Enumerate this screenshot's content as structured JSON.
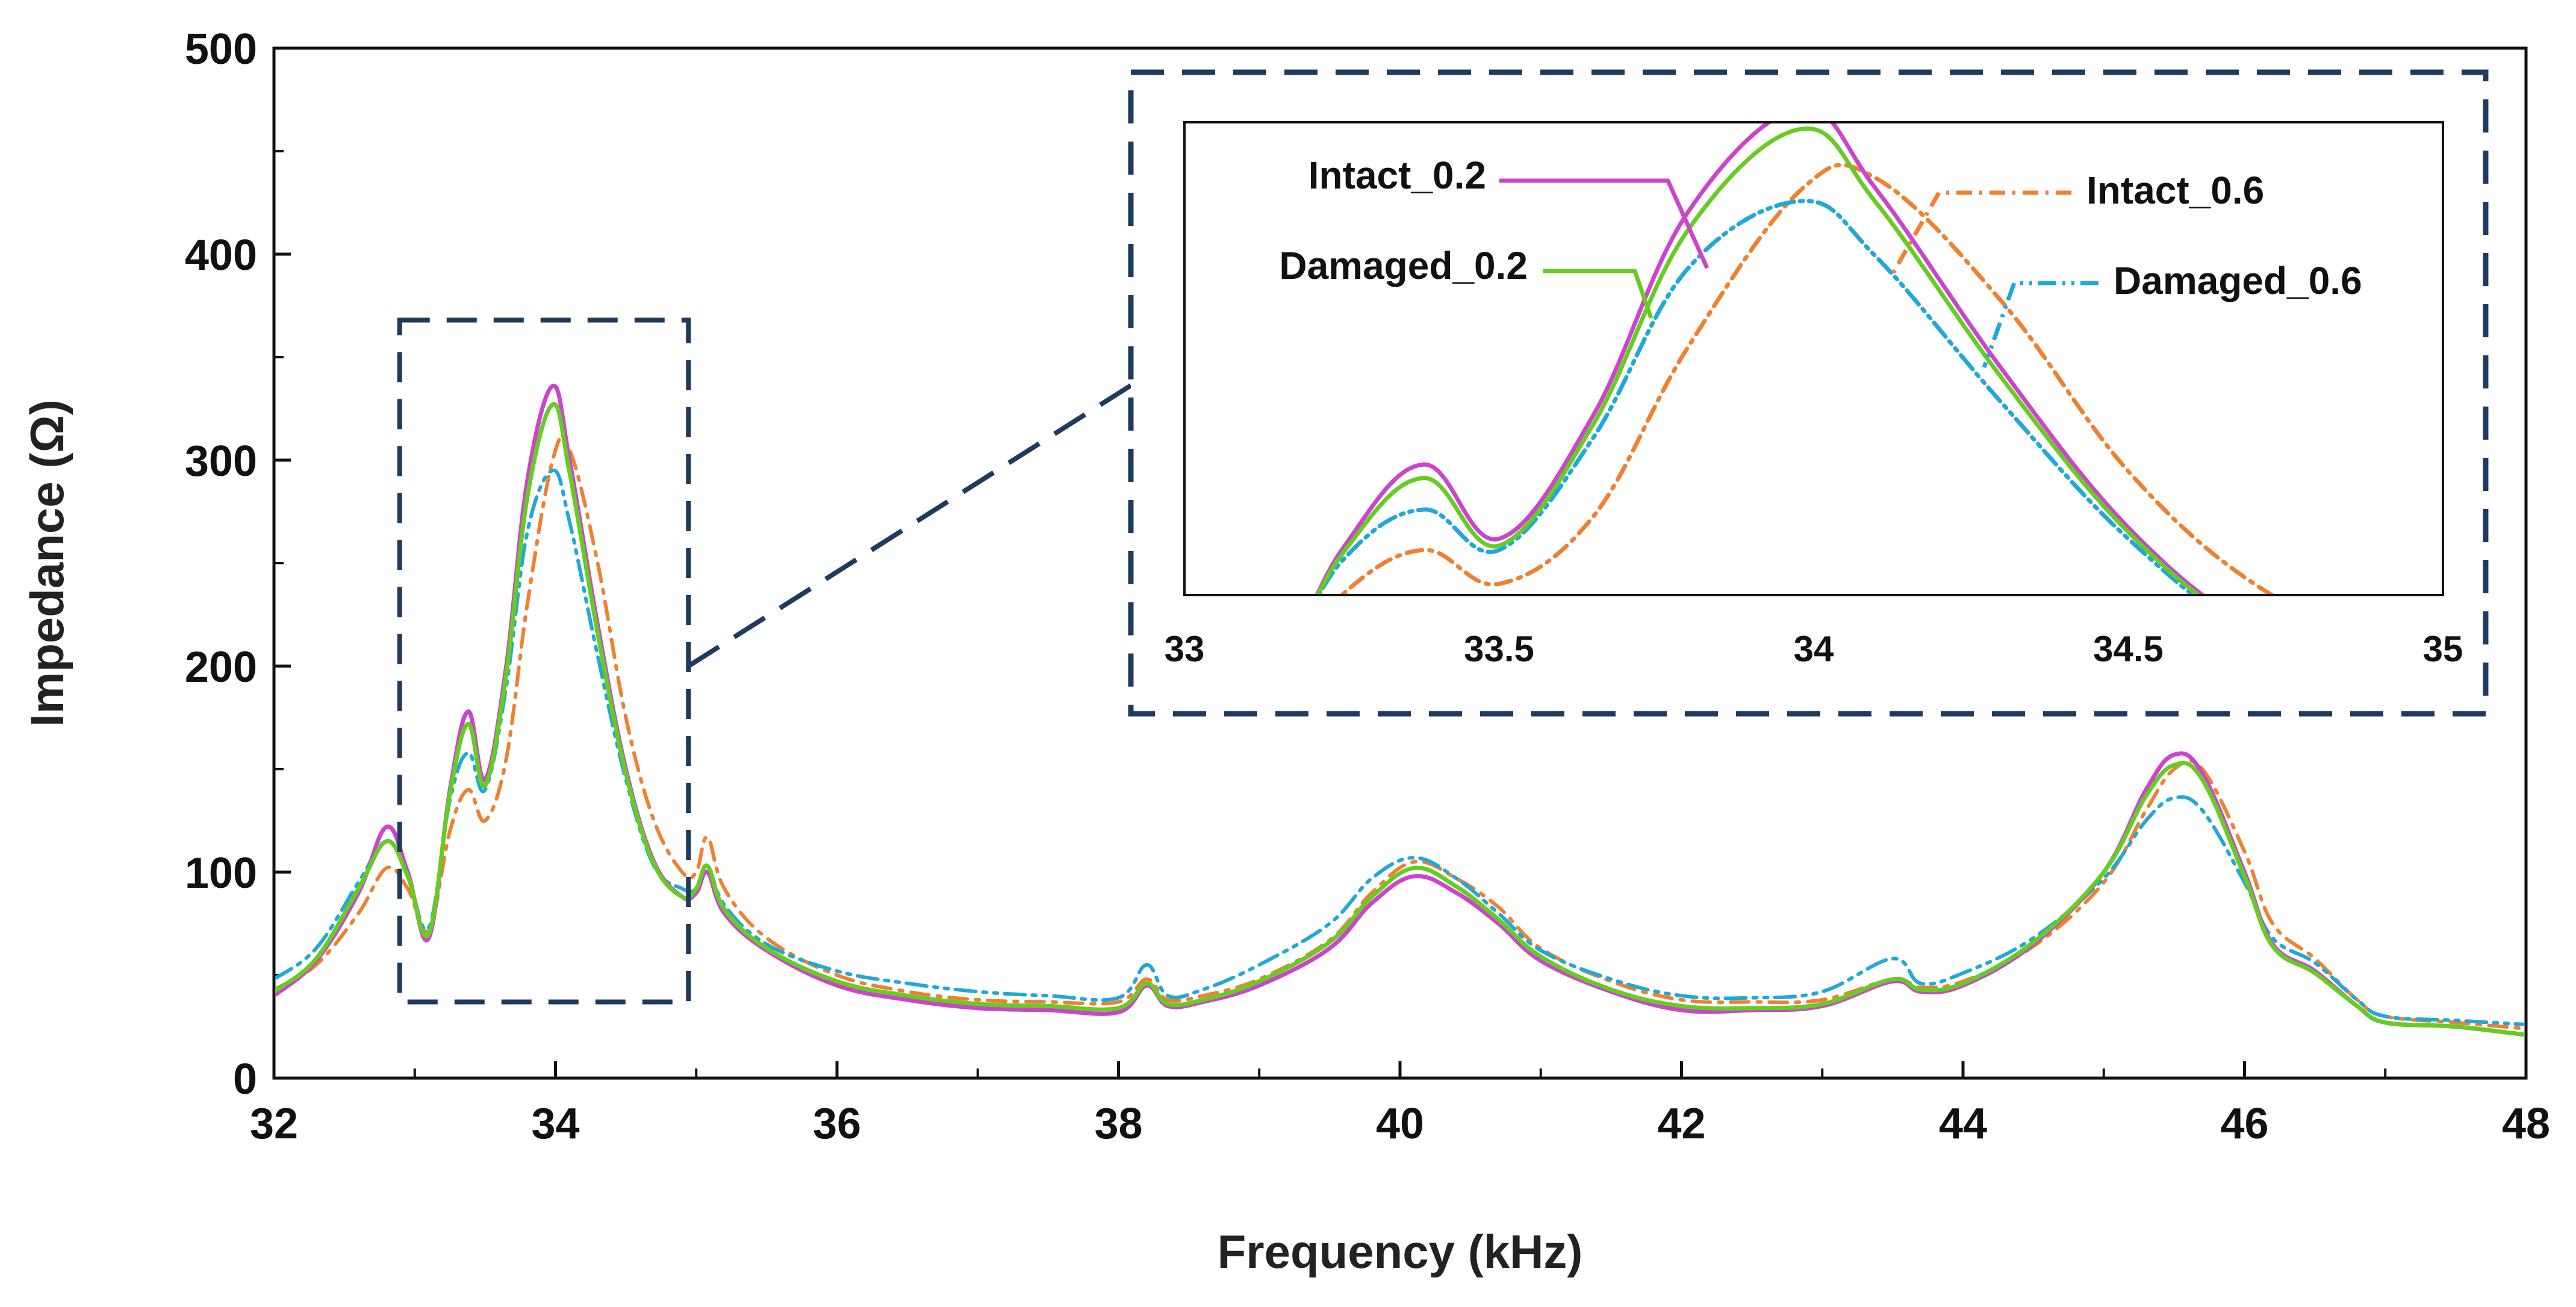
{
  "chart_data": {
    "type": "line",
    "title": "",
    "xlabel": "Frequency (kHz)",
    "ylabel": "Impedance (Ω)",
    "xlim": [
      32,
      48
    ],
    "ylim": [
      0,
      500
    ],
    "xticks": [
      "32",
      "34",
      "36",
      "38",
      "40",
      "42",
      "44",
      "46",
      "48"
    ],
    "yticks": [
      "0",
      "100",
      "200",
      "300",
      "400",
      "500"
    ],
    "grid": false,
    "colors": {
      "Intact_0.2": "#cc44cc",
      "Damaged_0.2": "#66cc22",
      "Intact_0.6": "#f08030",
      "Damaged_0.6": "#20a8d8",
      "frame": "#1f3a5f"
    },
    "series": [
      {
        "name": "Intact_0.2",
        "style": "solid",
        "x": [
          32,
          32.3,
          32.6,
          32.8,
          32.95,
          33.1,
          33.25,
          33.38,
          33.5,
          33.65,
          33.8,
          33.98,
          34.1,
          34.3,
          34.5,
          34.7,
          34.9,
          35.0,
          35.08,
          35.2,
          35.5,
          36.0,
          36.5,
          37.0,
          37.5,
          38.0,
          38.2,
          38.35,
          38.6,
          39.0,
          39.5,
          39.8,
          40.1,
          40.4,
          40.7,
          41.0,
          41.5,
          42.0,
          42.5,
          43.0,
          43.5,
          43.7,
          44.0,
          44.5,
          45.0,
          45.3,
          45.5,
          45.7,
          46.0,
          46.2,
          46.5,
          46.8,
          47.0,
          47.5,
          48.0
        ],
        "y": [
          40,
          57,
          90,
          122,
          100,
          68,
          140,
          178,
          145,
          200,
          290,
          336,
          300,
          220,
          150,
          105,
          88,
          90,
          100,
          80,
          62,
          45,
          38,
          34,
          33,
          32,
          45,
          35,
          37,
          45,
          63,
          85,
          98,
          90,
          75,
          57,
          42,
          33,
          33,
          35,
          47,
          42,
          45,
          65,
          100,
          140,
          157,
          148,
          100,
          65,
          52,
          35,
          27,
          25,
          21
        ]
      },
      {
        "name": "Damaged_0.2",
        "style": "solid",
        "x": [
          32,
          32.3,
          32.6,
          32.8,
          32.95,
          33.1,
          33.25,
          33.38,
          33.5,
          33.65,
          33.8,
          33.98,
          34.1,
          34.3,
          34.5,
          34.7,
          34.9,
          35.0,
          35.08,
          35.2,
          35.5,
          36.0,
          36.5,
          37.0,
          37.5,
          38.0,
          38.2,
          38.35,
          38.6,
          39.0,
          39.5,
          39.8,
          40.1,
          40.4,
          40.7,
          41.0,
          41.5,
          42.0,
          42.5,
          43.0,
          43.5,
          43.7,
          44.0,
          44.5,
          45.0,
          45.3,
          45.5,
          45.7,
          46.0,
          46.2,
          46.5,
          46.8,
          47.0,
          47.5,
          48.0
        ],
        "y": [
          42,
          58,
          92,
          115,
          98,
          70,
          138,
          172,
          142,
          196,
          282,
          327,
          294,
          216,
          148,
          104,
          88,
          92,
          103,
          82,
          63,
          47,
          40,
          36,
          35,
          34,
          46,
          36,
          38,
          47,
          66,
          88,
          102,
          93,
          77,
          59,
          43,
          35,
          34,
          36,
          48,
          43,
          46,
          66,
          100,
          137,
          152,
          145,
          98,
          64,
          51,
          35,
          27,
          25,
          21
        ]
      },
      {
        "name": "Intact_0.6",
        "style": "dashdot",
        "x": [
          32,
          32.3,
          32.6,
          32.8,
          32.95,
          33.1,
          33.25,
          33.38,
          33.5,
          33.65,
          33.8,
          33.98,
          34.1,
          34.3,
          34.5,
          34.7,
          34.9,
          35.0,
          35.08,
          35.2,
          35.5,
          36.0,
          36.5,
          37.0,
          37.5,
          38.0,
          38.2,
          38.35,
          38.6,
          39.0,
          39.5,
          39.8,
          40.1,
          40.4,
          40.7,
          41.0,
          41.5,
          42.0,
          42.5,
          43.0,
          43.5,
          43.7,
          44.0,
          44.5,
          45.0,
          45.3,
          45.5,
          45.7,
          46.0,
          46.2,
          46.5,
          46.8,
          47.0,
          47.5,
          48.0
        ],
        "y": [
          43,
          55,
          80,
          102,
          92,
          72,
          120,
          140,
          125,
          155,
          230,
          300,
          305,
          250,
          175,
          125,
          100,
          100,
          117,
          92,
          68,
          50,
          42,
          38,
          37,
          37,
          48,
          38,
          40,
          48,
          67,
          90,
          105,
          97,
          83,
          63,
          47,
          38,
          37,
          38,
          48,
          44,
          47,
          64,
          95,
          130,
          150,
          150,
          110,
          75,
          58,
          38,
          30,
          27,
          24
        ]
      },
      {
        "name": "Damaged_0.6",
        "style": "dashdotdot",
        "x": [
          32,
          32.3,
          32.6,
          32.8,
          32.95,
          33.1,
          33.25,
          33.38,
          33.5,
          33.65,
          33.8,
          33.98,
          34.1,
          34.3,
          34.5,
          34.7,
          34.9,
          35.0,
          35.08,
          35.2,
          35.5,
          36.0,
          36.5,
          37.0,
          37.5,
          38.0,
          38.2,
          38.35,
          38.6,
          39.0,
          39.5,
          39.8,
          40.1,
          40.4,
          40.7,
          41.0,
          41.5,
          42.0,
          42.5,
          43.0,
          43.5,
          43.7,
          44.0,
          44.5,
          45.0,
          45.3,
          45.5,
          45.7,
          46.0,
          46.2,
          46.5,
          46.8,
          47.0,
          47.5,
          48.0
        ],
        "y": [
          48,
          63,
          95,
          115,
          98,
          73,
          135,
          158,
          140,
          190,
          265,
          295,
          270,
          205,
          145,
          103,
          92,
          92,
          103,
          84,
          65,
          52,
          46,
          42,
          40,
          39,
          55,
          40,
          43,
          55,
          75,
          97,
          107,
          97,
          80,
          62,
          48,
          40,
          39,
          42,
          58,
          46,
          51,
          68,
          97,
          125,
          136,
          130,
          95,
          68,
          56,
          38,
          30,
          28,
          26
        ]
      }
    ],
    "zoom_box": {
      "x_range": [
        33,
        35
      ],
      "y_range": [
        37,
        368
      ]
    },
    "inset": {
      "xlim": [
        33,
        35
      ],
      "ylim": [
        120,
        330
      ],
      "xticks": [
        "33",
        "33.5",
        "34",
        "34.5",
        "35"
      ],
      "legend": [
        "Intact_0.2",
        "Damaged_0.2",
        "Intact_0.6",
        "Damaged_0.6"
      ]
    }
  }
}
